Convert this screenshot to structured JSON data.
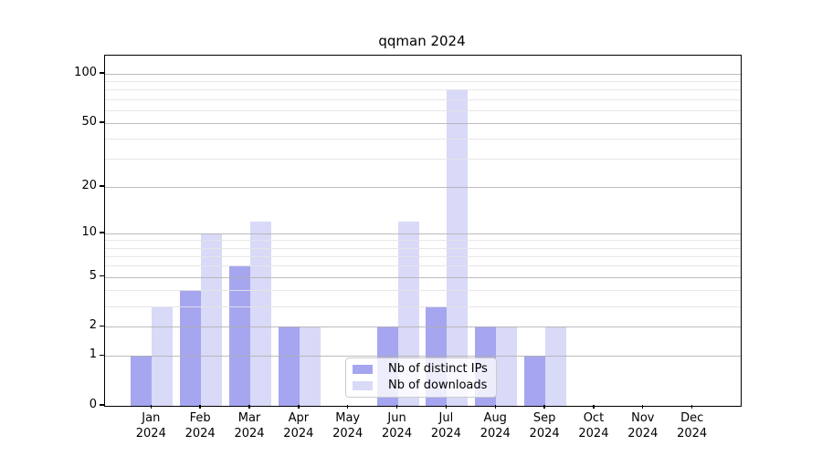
{
  "title": "qqman 2024",
  "legend": {
    "items": [
      {
        "label": "Nb of distinct IPs",
        "color": "#a5a5f0"
      },
      {
        "label": "Nb of downloads",
        "color": "#d9d9f8"
      }
    ]
  },
  "chart_data": {
    "type": "bar",
    "title": "qqman 2024",
    "y_scale": "log1p",
    "grid": "horizontal",
    "legend_position": "inside-bottom-center",
    "categories": [
      "Jan",
      "Feb",
      "Mar",
      "Apr",
      "May",
      "Jun",
      "Jul",
      "Aug",
      "Sep",
      "Oct",
      "Nov",
      "Dec"
    ],
    "year": "2024",
    "series": [
      {
        "name": "Nb of distinct IPs",
        "color": "#a5a5f0",
        "values": [
          1,
          4,
          6,
          2,
          0,
          2,
          3,
          2,
          1,
          0,
          0,
          0
        ]
      },
      {
        "name": "Nb of downloads",
        "color": "#d9d9f8",
        "values": [
          3,
          10,
          12,
          2,
          0,
          12,
          80,
          2,
          2,
          0,
          0,
          0
        ]
      }
    ],
    "y_ticks": [
      0,
      1,
      2,
      5,
      10,
      20,
      50,
      100
    ],
    "y_minor_gridlines": [
      3,
      4,
      6,
      7,
      8,
      9,
      30,
      40,
      60,
      70,
      80,
      90
    ],
    "ylim": [
      0,
      129
    ],
    "colors": {
      "axis": "#000000",
      "grid_major": "#b0b0b0",
      "grid_minor": "#e4e4e4"
    }
  }
}
